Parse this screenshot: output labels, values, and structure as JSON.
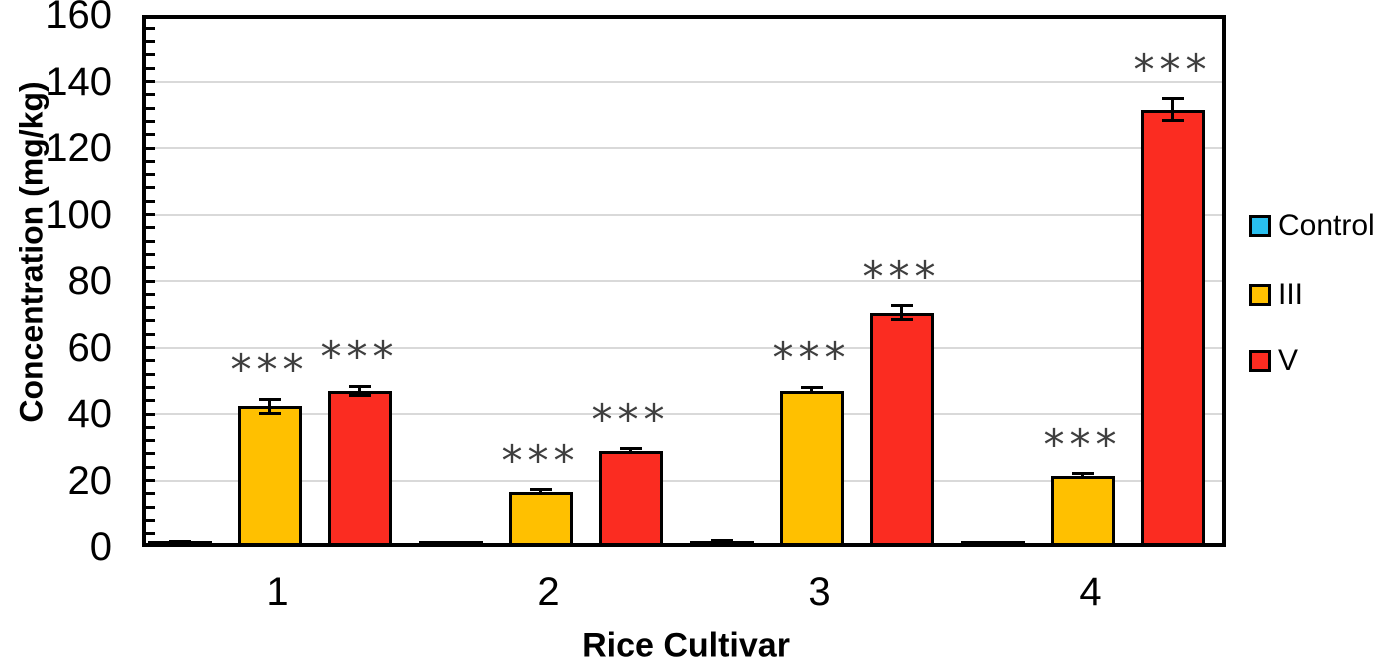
{
  "chart_data": {
    "type": "bar",
    "title": "",
    "xlabel": "Rice Cultivar",
    "ylabel": "Concentration (mg/kg)",
    "categories": [
      "1",
      "2",
      "3",
      "4"
    ],
    "series": [
      {
        "name": "Control",
        "color": "#29BFEF",
        "values": [
          1.3,
          1.0,
          1.5,
          1.0
        ],
        "errors": [
          0.4,
          0.3,
          0.4,
          0.3
        ],
        "significance": [
          "",
          "",
          "",
          ""
        ]
      },
      {
        "name": "III",
        "color": "#FFC000",
        "values": [
          42.3,
          16.5,
          47.0,
          21.3
        ],
        "errors": [
          2.2,
          0.7,
          1.0,
          0.7
        ],
        "significance": [
          "***",
          "***",
          "***",
          "***"
        ]
      },
      {
        "name": "V",
        "color": "#FB2C21",
        "values": [
          47.0,
          29.0,
          70.5,
          131.5
        ],
        "errors": [
          1.3,
          0.5,
          2.0,
          3.3
        ],
        "significance": [
          "***",
          "***",
          "***",
          "***"
        ]
      }
    ],
    "ylim": [
      0,
      160
    ],
    "ytick_step": 20,
    "ytick_labels": [
      "0",
      "20",
      "40",
      "60",
      "80",
      "100",
      "120",
      "140",
      "160"
    ],
    "minor_tick_step": 4,
    "grid": true,
    "gridline_color": "#D9D9D9",
    "annotation_color": "#3F3F3F",
    "legend_position": "right"
  }
}
